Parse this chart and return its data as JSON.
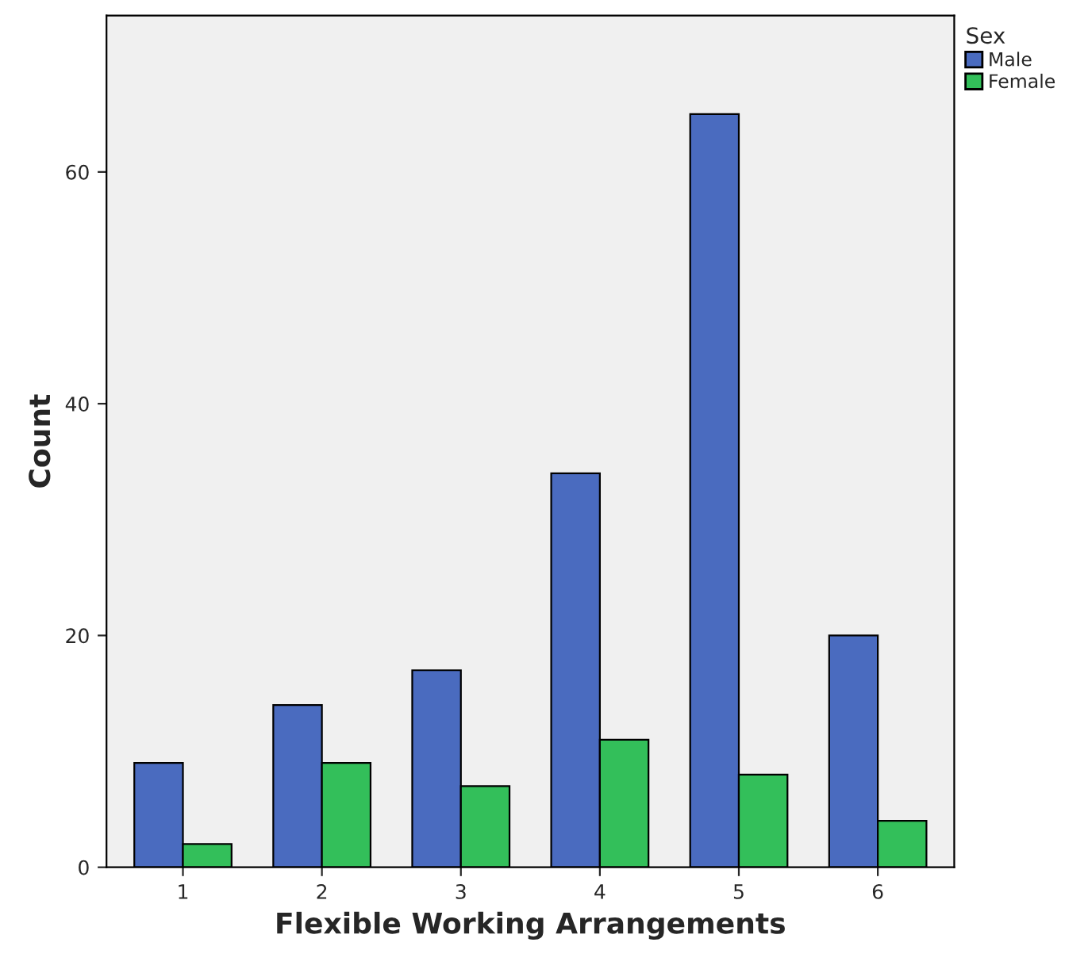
{
  "chart_data": {
    "type": "bar",
    "xlabel": "Flexible Working Arrangements",
    "ylabel": "Count",
    "legend_title": "Sex",
    "categories": [
      "1",
      "2",
      "3",
      "4",
      "5",
      "6"
    ],
    "series": [
      {
        "name": "Male",
        "color": "#4a6bbf",
        "values": [
          9,
          14,
          17,
          34,
          65,
          20
        ]
      },
      {
        "name": "Female",
        "color": "#33bf5a",
        "values": [
          2,
          9,
          7,
          11,
          8,
          4
        ]
      }
    ],
    "ylim": [
      0,
      73.5
    ],
    "yticks": [
      0,
      20,
      40,
      60
    ],
    "grid": false,
    "legend": "top right"
  }
}
